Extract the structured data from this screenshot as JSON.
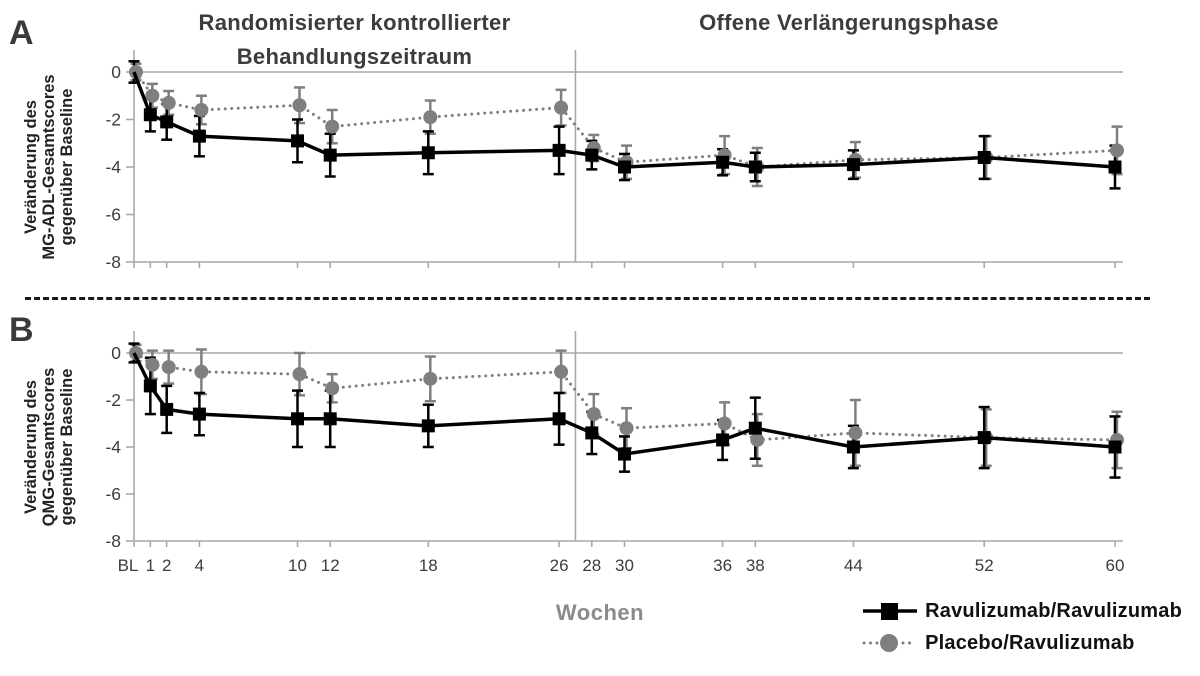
{
  "figure": {
    "panel_a_letter": "A",
    "panel_b_letter": "B",
    "xlabel": "Wochen"
  },
  "headers": {
    "randomized_line1": "Randomisierter kontrollierter",
    "randomized_line2": "Behandlungszeitraum",
    "open_label": "Offene Verlängerungsphase"
  },
  "legend": {
    "items": [
      {
        "label": "Ravulizumab/Ravulizumab",
        "marker": "black-square",
        "line": "solid",
        "color": "#000000"
      },
      {
        "label": "Placebo/Ravulizumab",
        "marker": "gray-circle",
        "line": "dotted",
        "color": "#7f7f7f"
      }
    ]
  },
  "colors": {
    "black_series": "#000000",
    "gray_series": "#7f7f7f",
    "axis": "#a9a9a9",
    "tick_text": "#3d3d3d"
  },
  "chart_data": [
    {
      "type": "line",
      "panel": "A",
      "ylabel_lines": [
        "Veränderung des",
        "MG-ADL-Gesamtscores",
        "gegenüber Baseline"
      ],
      "x_weeks": [
        0,
        1,
        2,
        4,
        10,
        12,
        18,
        26,
        28,
        30,
        36,
        38,
        44,
        52,
        60
      ],
      "x_tick_labels": [
        "BL",
        "1",
        "2",
        "4",
        "10",
        "12",
        "18",
        "26",
        "28",
        "30",
        "36",
        "38",
        "44",
        "52",
        "60"
      ],
      "y_ticks": [
        0,
        -2,
        -4,
        -6,
        -8
      ],
      "ylim": [
        -8,
        0
      ],
      "phase_divider_week": 27,
      "series": [
        {
          "name": "Ravulizumab/Ravulizumab",
          "marker": "square",
          "line": "solid",
          "color": "#000000",
          "values": [
            0,
            -1.8,
            -2.1,
            -2.7,
            -2.9,
            -3.5,
            -3.4,
            -3.3,
            -3.5,
            -4.0,
            -3.8,
            -4.0,
            -3.9,
            -3.6,
            -4.0
          ],
          "err": [
            0.45,
            0.7,
            0.75,
            0.85,
            0.9,
            0.9,
            0.9,
            1.0,
            0.6,
            0.55,
            0.55,
            0.6,
            0.6,
            0.9,
            0.9
          ]
        },
        {
          "name": "Placebo/Ravulizumab",
          "marker": "circle",
          "line": "dotted",
          "color": "#7f7f7f",
          "values": [
            0,
            -1.0,
            -1.3,
            -1.6,
            -1.4,
            -2.3,
            -1.9,
            -1.5,
            -3.2,
            -3.8,
            -3.5,
            -4.0,
            -3.7,
            -3.6,
            -3.3
          ],
          "err": [
            0.35,
            0.5,
            0.5,
            0.6,
            0.75,
            0.7,
            0.7,
            0.75,
            0.55,
            0.7,
            0.8,
            0.8,
            0.75,
            0.9,
            1.0
          ]
        }
      ]
    },
    {
      "type": "line",
      "panel": "B",
      "ylabel_lines": [
        "Veränderung des",
        "QMG-Gesamtscores",
        "gegenüber Baseline"
      ],
      "x_weeks": [
        0,
        1,
        2,
        4,
        10,
        12,
        18,
        26,
        28,
        30,
        36,
        38,
        44,
        52,
        60
      ],
      "x_tick_labels": [
        "BL",
        "1",
        "2",
        "4",
        "10",
        "12",
        "18",
        "26",
        "28",
        "30",
        "36",
        "38",
        "44",
        "52",
        "60"
      ],
      "y_ticks": [
        0,
        -2,
        -4,
        -6,
        -8
      ],
      "ylim": [
        -8,
        0
      ],
      "phase_divider_week": 27,
      "series": [
        {
          "name": "Ravulizumab/Ravulizumab",
          "marker": "square",
          "line": "solid",
          "color": "#000000",
          "values": [
            0,
            -1.4,
            -2.4,
            -2.6,
            -2.8,
            -2.8,
            -3.1,
            -2.8,
            -3.4,
            -4.3,
            -3.7,
            -3.2,
            -4.0,
            -3.6,
            -4.0
          ],
          "err": [
            0.4,
            1.2,
            1.0,
            0.9,
            1.2,
            1.2,
            0.9,
            1.1,
            0.9,
            0.75,
            0.85,
            1.3,
            0.9,
            1.3,
            1.3
          ]
        },
        {
          "name": "Placebo/Ravulizumab",
          "marker": "circle",
          "line": "dotted",
          "color": "#7f7f7f",
          "values": [
            0,
            -0.5,
            -0.6,
            -0.8,
            -0.9,
            -1.5,
            -1.1,
            -0.8,
            -2.6,
            -3.2,
            -3.0,
            -3.7,
            -3.4,
            -3.6,
            -3.7
          ],
          "err": [
            0.35,
            0.6,
            0.7,
            0.95,
            0.9,
            0.6,
            0.95,
            0.9,
            0.85,
            0.85,
            0.9,
            1.1,
            1.4,
            1.2,
            1.2
          ]
        }
      ]
    }
  ]
}
